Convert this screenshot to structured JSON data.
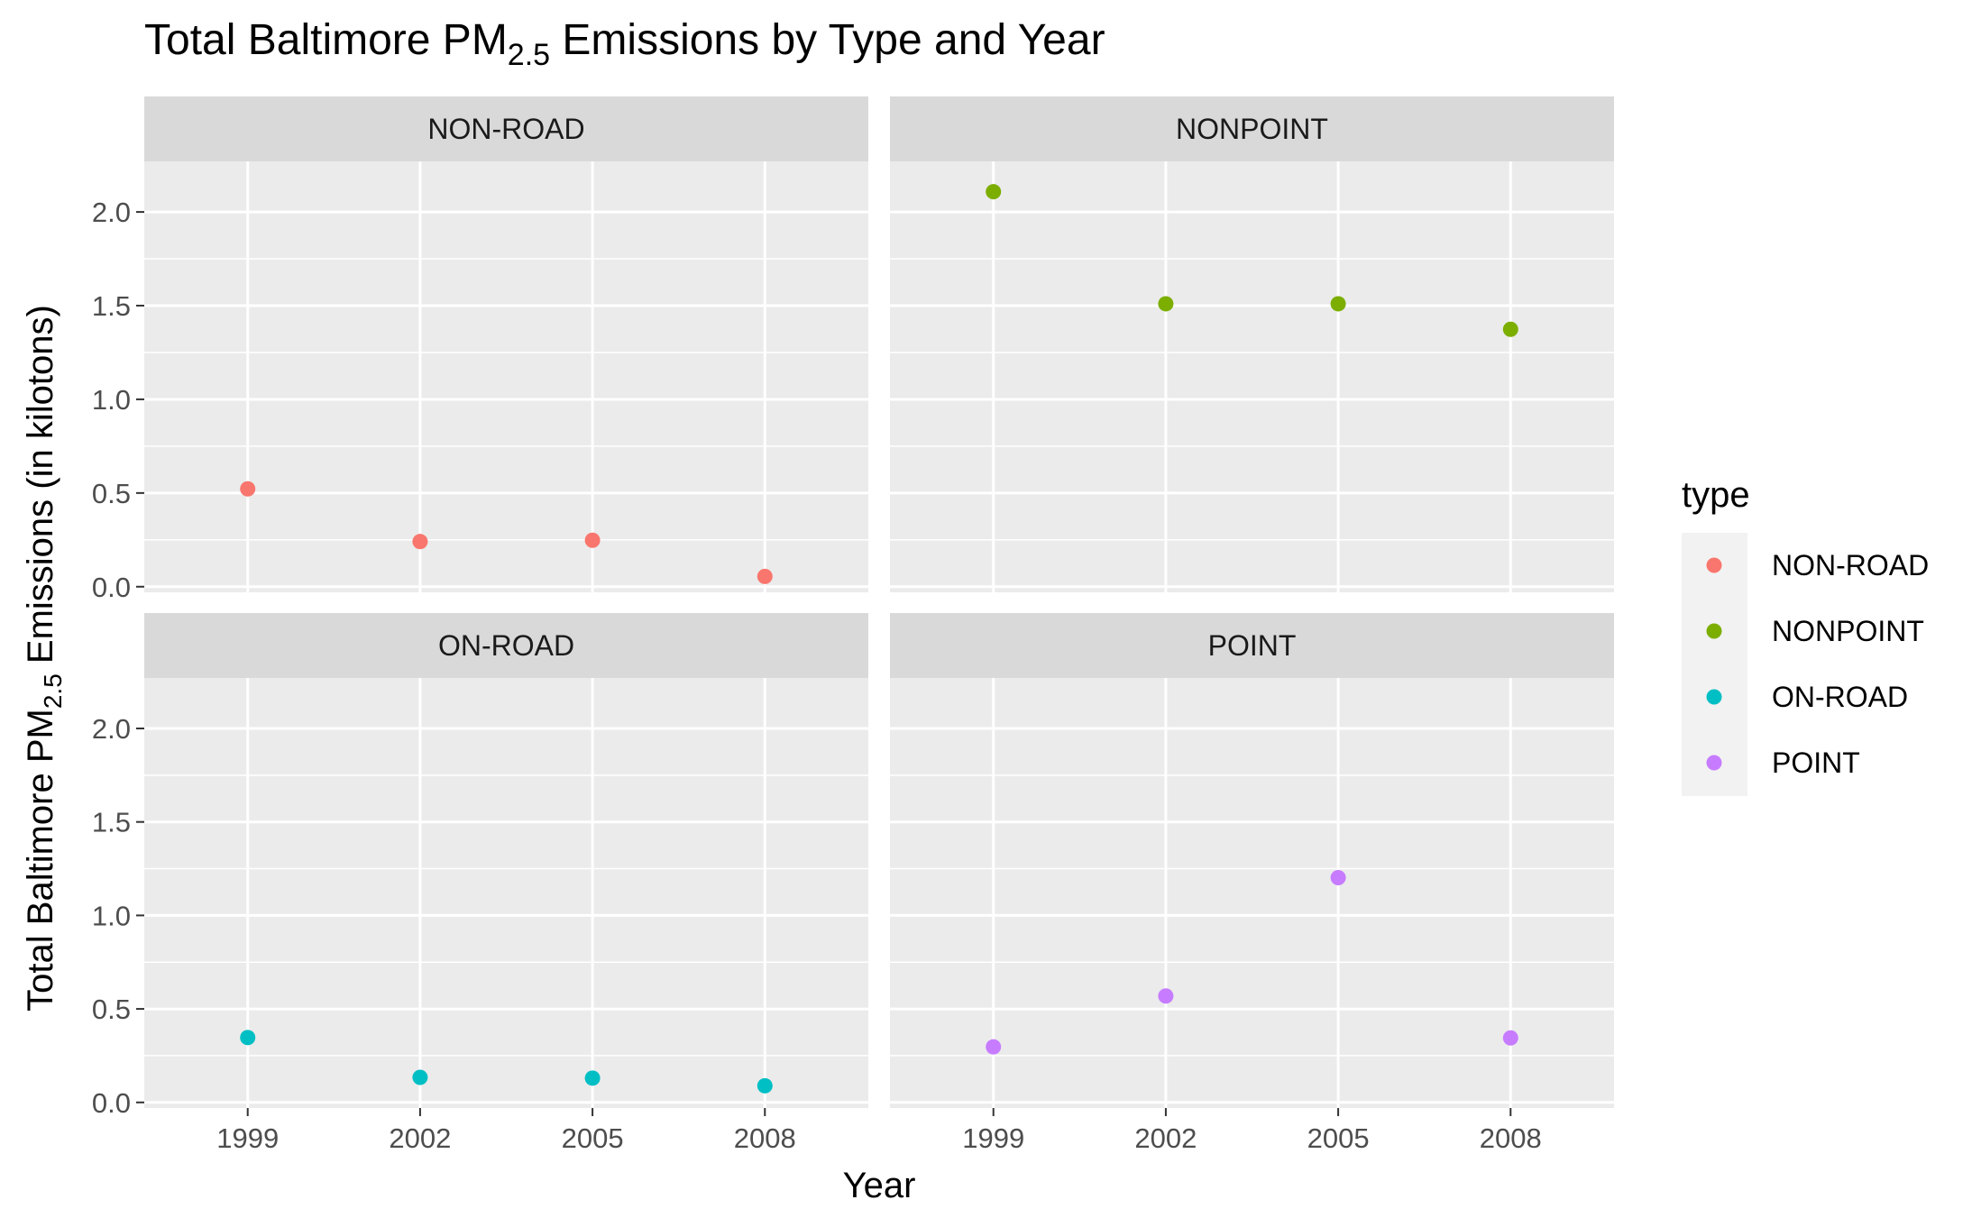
{
  "chart_data": {
    "type": "scatter",
    "title": "Total Baltimore  PM",
    "title_sub": "2.5",
    "title_rest": " Emissions by Type and Year",
    "xlabel": "Year",
    "ylabel": "Total Baltimore  PM",
    "ylabel_sub": "2.5",
    "ylabel_rest": " Emissions (in kilotons)",
    "x_ticks": [
      "1999",
      "2002",
      "2005",
      "2008"
    ],
    "y_ticks": [
      "0.0",
      "0.5",
      "1.0",
      "1.5",
      "2.0"
    ],
    "ylim": [
      -0.03,
      2.27
    ],
    "xlim": [
      1997.2,
      2009.8
    ],
    "grid": true,
    "legend": {
      "title": "type",
      "position": "right",
      "entries": [
        "NON-ROAD",
        "NONPOINT",
        "ON-ROAD",
        "POINT"
      ]
    },
    "panels": [
      {
        "label": "NON-ROAD",
        "color": "#F8766D",
        "x": [
          1999,
          2002,
          2005,
          2008
        ],
        "y": [
          0.522,
          0.241,
          0.248,
          0.055
        ]
      },
      {
        "label": "NONPOINT",
        "color": "#7CAE00",
        "x": [
          1999,
          2002,
          2005,
          2008
        ],
        "y": [
          2.108,
          1.51,
          1.51,
          1.374
        ]
      },
      {
        "label": "ON-ROAD",
        "color": "#00BFC4",
        "x": [
          1999,
          2002,
          2005,
          2008
        ],
        "y": [
          0.347,
          0.134,
          0.13,
          0.089
        ]
      },
      {
        "label": "POINT",
        "color": "#C77CFF",
        "x": [
          1999,
          2002,
          2005,
          2008
        ],
        "y": [
          0.297,
          0.569,
          1.202,
          0.345
        ]
      }
    ]
  }
}
